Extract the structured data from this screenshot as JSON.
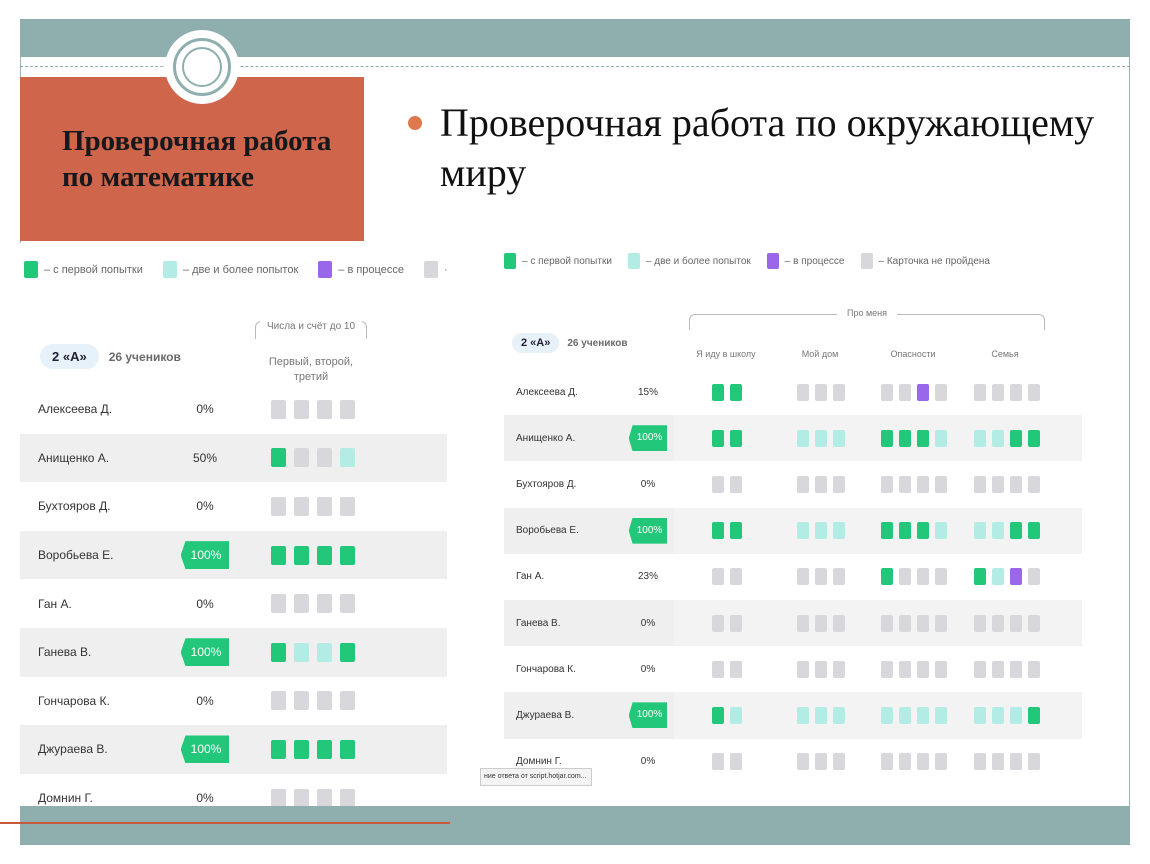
{
  "slide": {
    "title_box": "Проверочная работа по математике",
    "bullet": "Проверочная работа по окружающему миру",
    "colors": {
      "band": "#8fafaf",
      "title_box": "#cf654a",
      "bullet": "#e0784e"
    }
  },
  "legend": {
    "first_try": "– с первой попытки",
    "multiple_tries": "– две и более попыток",
    "in_progress": "– в процессе",
    "not_passed": "– Карточка не пройдена"
  },
  "left_panel": {
    "class_label": "2 «А»",
    "students_count": "26 учеников",
    "topic": "Числа и счёт до 10",
    "subtopic": "Первый, второй, третий",
    "rows": [
      {
        "name": "Алексеева Д.",
        "percent": "0%",
        "highlight": false,
        "cells": [
          "n",
          "n",
          "n",
          "n"
        ]
      },
      {
        "name": "Анищенко А.",
        "percent": "50%",
        "highlight": false,
        "cells": [
          "f",
          "n",
          "n",
          "m"
        ]
      },
      {
        "name": "Бухтояров Д.",
        "percent": "0%",
        "highlight": false,
        "cells": [
          "n",
          "n",
          "n",
          "n"
        ]
      },
      {
        "name": "Воробьева Е.",
        "percent": "100%",
        "highlight": true,
        "cells": [
          "f",
          "f",
          "f",
          "f"
        ]
      },
      {
        "name": "Ган А.",
        "percent": "0%",
        "highlight": false,
        "cells": [
          "n",
          "n",
          "n",
          "n"
        ]
      },
      {
        "name": "Ганева В.",
        "percent": "100%",
        "highlight": true,
        "cells": [
          "f",
          "m",
          "m",
          "f"
        ]
      },
      {
        "name": "Гончарова К.",
        "percent": "0%",
        "highlight": false,
        "cells": [
          "n",
          "n",
          "n",
          "n"
        ]
      },
      {
        "name": "Джураева В.",
        "percent": "100%",
        "highlight": true,
        "cells": [
          "f",
          "f",
          "f",
          "f"
        ]
      },
      {
        "name": "Домнин Г.",
        "percent": "0%",
        "highlight": false,
        "cells": [
          "n",
          "n",
          "n",
          "n"
        ]
      }
    ]
  },
  "right_panel": {
    "class_label": "2 «А»",
    "students_count": "26 учеников",
    "group_title": "Про меня",
    "columns": [
      "Я иду в школу",
      "Мой дом",
      "Опасности",
      "Семья"
    ],
    "rows": [
      {
        "name": "Алексеева Д.",
        "percent": "15%",
        "highlight": false,
        "cells": [
          [
            "f",
            "f"
          ],
          [
            "n",
            "n",
            "n"
          ],
          [
            "n",
            "n",
            "p",
            "n"
          ],
          [
            "n",
            "n",
            "n",
            "n"
          ]
        ]
      },
      {
        "name": "Анищенко А.",
        "percent": "100%",
        "highlight": true,
        "cells": [
          [
            "f",
            "f"
          ],
          [
            "m",
            "m",
            "m"
          ],
          [
            "f",
            "f",
            "f",
            "m"
          ],
          [
            "m",
            "m",
            "f",
            "f"
          ]
        ]
      },
      {
        "name": "Бухтояров Д.",
        "percent": "0%",
        "highlight": false,
        "cells": [
          [
            "n",
            "n"
          ],
          [
            "n",
            "n",
            "n"
          ],
          [
            "n",
            "n",
            "n",
            "n"
          ],
          [
            "n",
            "n",
            "n",
            "n"
          ]
        ]
      },
      {
        "name": "Воробьева Е.",
        "percent": "100%",
        "highlight": true,
        "cells": [
          [
            "f",
            "f"
          ],
          [
            "m",
            "m",
            "m"
          ],
          [
            "f",
            "f",
            "f",
            "m"
          ],
          [
            "m",
            "m",
            "f",
            "f"
          ]
        ]
      },
      {
        "name": "Ган А.",
        "percent": "23%",
        "highlight": false,
        "cells": [
          [
            "n",
            "n"
          ],
          [
            "n",
            "n",
            "n"
          ],
          [
            "f",
            "n",
            "n",
            "n"
          ],
          [
            "f",
            "m",
            "p",
            "n"
          ]
        ]
      },
      {
        "name": "Ганева В.",
        "percent": "0%",
        "highlight": false,
        "cells": [
          [
            "n",
            "n"
          ],
          [
            "n",
            "n",
            "n"
          ],
          [
            "n",
            "n",
            "n",
            "n"
          ],
          [
            "n",
            "n",
            "n",
            "n"
          ]
        ]
      },
      {
        "name": "Гончарова К.",
        "percent": "0%",
        "highlight": false,
        "cells": [
          [
            "n",
            "n"
          ],
          [
            "n",
            "n",
            "n"
          ],
          [
            "n",
            "n",
            "n",
            "n"
          ],
          [
            "n",
            "n",
            "n",
            "n"
          ]
        ]
      },
      {
        "name": "Джураева В.",
        "percent": "100%",
        "highlight": true,
        "cells": [
          [
            "f",
            "m"
          ],
          [
            "m",
            "m",
            "m"
          ],
          [
            "m",
            "m",
            "m",
            "m"
          ],
          [
            "m",
            "m",
            "m",
            "f"
          ]
        ]
      },
      {
        "name": "Домнин Г.",
        "percent": "0%",
        "highlight": false,
        "cells": [
          [
            "n",
            "n"
          ],
          [
            "n",
            "n",
            "n"
          ],
          [
            "n",
            "n",
            "n",
            "n"
          ],
          [
            "n",
            "n",
            "n",
            "n"
          ]
        ]
      }
    ]
  },
  "status_tooltip": "ние ответа от script.hotjar.com..."
}
